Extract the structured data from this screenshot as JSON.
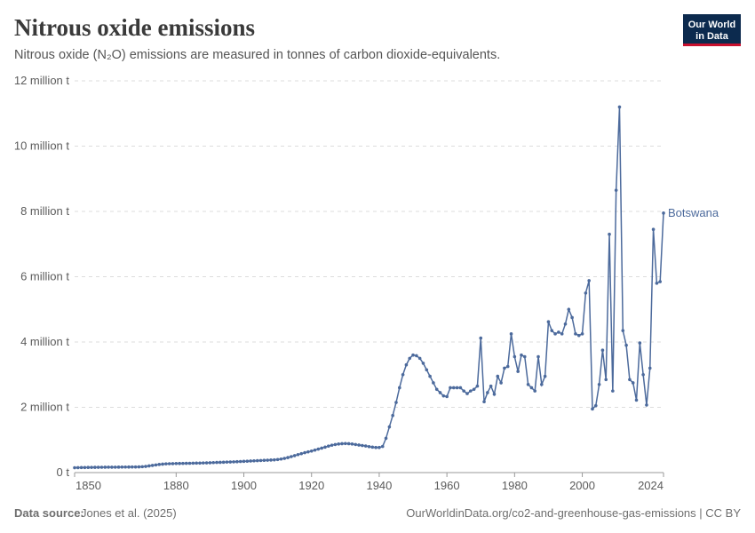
{
  "chart_data": {
    "type": "line",
    "title": "Nitrous oxide emissions",
    "subtitle": "Nitrous oxide (N₂O) emissions are measured in tonnes of carbon dioxide-equivalents.",
    "logo": [
      "Our World",
      "in Data"
    ],
    "source_label": "Data source:",
    "source": "Jones et al. (2025)",
    "footer_right": "OurWorldinData.org/co2-and-greenhouse-gas-emissions | CC BY",
    "xlim": [
      1850,
      2024
    ],
    "xticks": [
      1850,
      1880,
      1900,
      1920,
      1940,
      1960,
      1980,
      2000,
      2024
    ],
    "ylim": [
      0,
      12000000
    ],
    "yticks": [
      {
        "value": 0,
        "label": "0 t"
      },
      {
        "value": 2000000,
        "label": "2 million t"
      },
      {
        "value": 4000000,
        "label": "4 million t"
      },
      {
        "value": 6000000,
        "label": "6 million t"
      },
      {
        "value": 8000000,
        "label": "8 million t"
      },
      {
        "value": 10000000,
        "label": "10 million t"
      },
      {
        "value": 12000000,
        "label": "12 million t"
      }
    ],
    "grid": true,
    "x": [
      1850,
      1851,
      1852,
      1853,
      1854,
      1855,
      1856,
      1857,
      1858,
      1859,
      1860,
      1861,
      1862,
      1863,
      1864,
      1865,
      1866,
      1867,
      1868,
      1869,
      1870,
      1871,
      1872,
      1873,
      1874,
      1875,
      1876,
      1877,
      1878,
      1879,
      1880,
      1881,
      1882,
      1883,
      1884,
      1885,
      1886,
      1887,
      1888,
      1889,
      1890,
      1891,
      1892,
      1893,
      1894,
      1895,
      1896,
      1897,
      1898,
      1899,
      1900,
      1901,
      1902,
      1903,
      1904,
      1905,
      1906,
      1907,
      1908,
      1909,
      1910,
      1911,
      1912,
      1913,
      1914,
      1915,
      1916,
      1917,
      1918,
      1919,
      1920,
      1921,
      1922,
      1923,
      1924,
      1925,
      1926,
      1927,
      1928,
      1929,
      1930,
      1931,
      1932,
      1933,
      1934,
      1935,
      1936,
      1937,
      1938,
      1939,
      1940,
      1941,
      1942,
      1943,
      1944,
      1945,
      1946,
      1947,
      1948,
      1949,
      1950,
      1951,
      1952,
      1953,
      1954,
      1955,
      1956,
      1957,
      1958,
      1959,
      1960,
      1961,
      1962,
      1963,
      1964,
      1965,
      1966,
      1967,
      1968,
      1969,
      1970,
      1971,
      1972,
      1973,
      1974,
      1975,
      1976,
      1977,
      1978,
      1979,
      1980,
      1981,
      1982,
      1983,
      1984,
      1985,
      1986,
      1987,
      1988,
      1989,
      1990,
      1991,
      1992,
      1993,
      1994,
      1995,
      1996,
      1997,
      1998,
      1999,
      2000,
      2001,
      2002,
      2003,
      2004,
      2005,
      2006,
      2007,
      2008,
      2009,
      2010,
      2011,
      2012,
      2013,
      2014,
      2015,
      2016,
      2017,
      2018,
      2019,
      2020,
      2021,
      2022,
      2023,
      2024
    ],
    "series": [
      {
        "name": "Botswana",
        "color": "#4c6a9c",
        "values": [
          150000,
          152000,
          154000,
          156000,
          158000,
          160000,
          161000,
          162000,
          163000,
          164000,
          165000,
          166000,
          167000,
          168000,
          169000,
          170000,
          171000,
          172000,
          173000,
          175000,
          180000,
          190000,
          205000,
          220000,
          235000,
          250000,
          260000,
          268000,
          272000,
          275000,
          278000,
          280000,
          282000,
          284000,
          286000,
          288000,
          290000,
          292000,
          295000,
          298000,
          302000,
          306000,
          310000,
          314000,
          318000,
          322000,
          326000,
          330000,
          335000,
          340000,
          345000,
          350000,
          355000,
          360000,
          365000,
          370000,
          375000,
          380000,
          385000,
          390000,
          400000,
          415000,
          435000,
          460000,
          490000,
          520000,
          550000,
          580000,
          610000,
          635000,
          660000,
          690000,
          720000,
          750000,
          780000,
          810000,
          840000,
          860000,
          875000,
          885000,
          890000,
          885000,
          875000,
          860000,
          845000,
          830000,
          815000,
          795000,
          780000,
          770000,
          770000,
          800000,
          1050000,
          1400000,
          1750000,
          2150000,
          2600000,
          3000000,
          3300000,
          3500000,
          3600000,
          3580000,
          3500000,
          3350000,
          3150000,
          2950000,
          2750000,
          2550000,
          2450000,
          2350000,
          2330000,
          2600000,
          2600000,
          2600000,
          2600000,
          2500000,
          2420000,
          2500000,
          2550000,
          2650000,
          4120000,
          2170000,
          2450000,
          2650000,
          2400000,
          2950000,
          2750000,
          3200000,
          3250000,
          4250000,
          3550000,
          3100000,
          3600000,
          3550000,
          2700000,
          2600000,
          2500000,
          3550000,
          2700000,
          2950000,
          4620000,
          4350000,
          4250000,
          4300000,
          4250000,
          4550000,
          5000000,
          4750000,
          4250000,
          4200000,
          4250000,
          5500000,
          5880000,
          1950000,
          2050000,
          2700000,
          3750000,
          2850000,
          7300000,
          2500000,
          8650000,
          11200000,
          4350000,
          3900000,
          2850000,
          2750000,
          2220000,
          3970000,
          3000000,
          2070000,
          3200000,
          7450000,
          5800000,
          5850000,
          7950000
        ]
      }
    ]
  }
}
